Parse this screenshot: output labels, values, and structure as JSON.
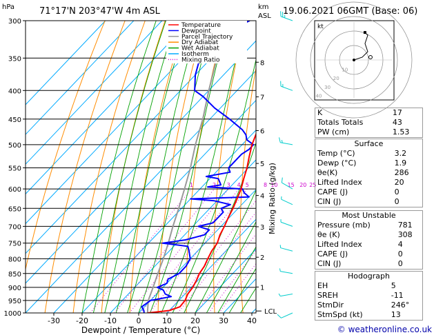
{
  "header": {
    "location": "71°17'N  203°47'W  4m  ASL",
    "datetime": "19.06.2021  06GMT  (Base: 06)",
    "hpa_label": "hPa",
    "km_label": "km",
    "asl_label": "ASL",
    "mixing_label": "Mixing Ratio (g/kg)",
    "lcl_label": "LCL",
    "credit": "© weatheronline.co.uk",
    "hodo_unit": "kt"
  },
  "legend": [
    {
      "label": "Temperature",
      "color": "#ff0000",
      "style": "solid"
    },
    {
      "label": "Dewpoint",
      "color": "#0000ff",
      "style": "solid"
    },
    {
      "label": "Parcel Trajectory",
      "color": "#999999",
      "style": "solid"
    },
    {
      "label": "Dry Adiabat",
      "color": "#ff8c00",
      "style": "solid"
    },
    {
      "label": "Wet Adiabat",
      "color": "#00a000",
      "style": "solid"
    },
    {
      "label": "Isotherm",
      "color": "#00aaff",
      "style": "solid"
    },
    {
      "label": "Mixing Ratio",
      "color": "#cc00cc",
      "style": "dotted"
    }
  ],
  "chart_data": {
    "type": "line",
    "xlabel": "Dewpoint / Temperature (°C)",
    "x_ticks": [
      "-30",
      "-20",
      "-10",
      "0",
      "10",
      "20",
      "30",
      "40"
    ],
    "p_ticks": [
      "300",
      "350",
      "400",
      "450",
      "500",
      "550",
      "600",
      "650",
      "700",
      "750",
      "800",
      "850",
      "900",
      "950",
      "1000"
    ],
    "km_ticks": [
      "1",
      "2",
      "3",
      "4",
      "5",
      "6",
      "7",
      "8"
    ],
    "mixing_ratio_labels": [
      "1",
      "2",
      "3",
      "4",
      "5",
      "8",
      "10",
      "15",
      "20",
      "25"
    ],
    "series": [
      {
        "name": "Temperature",
        "color": "#ff0000",
        "points": [
          [
            1000,
            3.2
          ],
          [
            990,
            10
          ],
          [
            975,
            12.5
          ],
          [
            950,
            12.2
          ],
          [
            925,
            11
          ],
          [
            900,
            10.5
          ],
          [
            875,
            9.5
          ],
          [
            850,
            8.2
          ],
          [
            825,
            7.5
          ],
          [
            800,
            6.2
          ],
          [
            775,
            5
          ],
          [
            750,
            4.3
          ],
          [
            725,
            2.5
          ],
          [
            700,
            1.2
          ],
          [
            675,
            -0.4
          ],
          [
            650,
            -1.8
          ],
          [
            625,
            -3.6
          ],
          [
            600,
            -5.5
          ],
          [
            575,
            -8
          ],
          [
            550,
            -10.5
          ],
          [
            525,
            -13.5
          ],
          [
            500,
            -16.5
          ],
          [
            475,
            -19
          ],
          [
            450,
            -21
          ],
          [
            425,
            -23.5
          ],
          [
            400,
            -27
          ],
          [
            375,
            -31
          ],
          [
            350,
            -35.5
          ],
          [
            325,
            -39.5
          ],
          [
            300,
            -44
          ]
        ]
      },
      {
        "name": "Dewpoint",
        "color": "#0000ff",
        "points": [
          [
            1000,
            1.9
          ],
          [
            990,
            1
          ],
          [
            975,
            -1
          ],
          [
            950,
            0
          ],
          [
            935,
            6
          ],
          [
            925,
            3
          ],
          [
            910,
            1
          ],
          [
            900,
            -2
          ],
          [
            885,
            0
          ],
          [
            870,
            -1
          ],
          [
            850,
            1
          ],
          [
            825,
            1
          ],
          [
            800,
            0
          ],
          [
            775,
            -3
          ],
          [
            760,
            -5
          ],
          [
            750,
            -15
          ],
          [
            740,
            -8
          ],
          [
            725,
            -3
          ],
          [
            710,
            -3
          ],
          [
            700,
            -8
          ],
          [
            690,
            -4
          ],
          [
            675,
            -4
          ],
          [
            660,
            -4
          ],
          [
            650,
            -6
          ],
          [
            640,
            -4
          ],
          [
            630,
            -11
          ],
          [
            625,
            -20
          ],
          [
            620,
            0
          ],
          [
            610,
            -3
          ],
          [
            600,
            -5
          ],
          [
            595,
            -18
          ],
          [
            590,
            -14
          ],
          [
            585,
            -15
          ],
          [
            575,
            -17
          ],
          [
            570,
            -22
          ],
          [
            560,
            -15
          ],
          [
            550,
            -17
          ],
          [
            540,
            -17
          ],
          [
            530,
            -17
          ],
          [
            520,
            -17
          ],
          [
            510,
            -16
          ],
          [
            500,
            -16
          ],
          [
            490,
            -20
          ],
          [
            480,
            -22
          ],
          [
            470,
            -25
          ],
          [
            450,
            -33
          ],
          [
            430,
            -42
          ],
          [
            410,
            -50
          ],
          [
            400,
            -55
          ],
          [
            375,
            -60
          ],
          [
            350,
            -64
          ],
          [
            325,
            -62
          ],
          [
            310,
            -62
          ],
          [
            300,
            -59
          ]
        ]
      },
      {
        "name": "Parcel Trajectory",
        "color": "#999999",
        "points": [
          [
            1000,
            3.2
          ],
          [
            992,
            2.5
          ],
          [
            950,
            -0.8
          ],
          [
            900,
            -3.5
          ],
          [
            850,
            -6.5
          ],
          [
            800,
            -9.5
          ],
          [
            750,
            -13
          ],
          [
            700,
            -17
          ],
          [
            650,
            -21
          ],
          [
            600,
            -25.5
          ],
          [
            550,
            -30.5
          ],
          [
            500,
            -36.5
          ],
          [
            450,
            -42.5
          ],
          [
            400,
            -50
          ],
          [
            350,
            -58
          ],
          [
            300,
            -67
          ]
        ]
      }
    ]
  },
  "wind_barbs": [
    {
      "p": 1000,
      "dir": 246,
      "speed": 10
    },
    {
      "p": 925,
      "dir": 260,
      "speed": 5
    },
    {
      "p": 850,
      "dir": 280,
      "speed": 5
    },
    {
      "p": 775,
      "dir": 285,
      "speed": 5
    },
    {
      "p": 700,
      "dir": 290,
      "speed": 5
    },
    {
      "p": 640,
      "dir": 295,
      "speed": 5
    },
    {
      "p": 600,
      "dir": 300,
      "speed": 10
    },
    {
      "p": 500,
      "dir": 280,
      "speed": 15
    },
    {
      "p": 400,
      "dir": 290,
      "speed": 15
    },
    {
      "p": 300,
      "dir": 290,
      "speed": 25
    }
  ],
  "hodograph": {
    "unit": "kt",
    "ring_labels": [
      "10",
      "20",
      "30",
      "40"
    ],
    "trace": [
      [
        0,
        0
      ],
      [
        3,
        1
      ],
      [
        5,
        3
      ],
      [
        4,
        6
      ],
      [
        5,
        9
      ],
      [
        4,
        10
      ]
    ],
    "storm": [
      6,
      2
    ]
  },
  "indices": [
    {
      "label": "K",
      "value": "17"
    },
    {
      "label": "Totals Totals",
      "value": "43"
    },
    {
      "label": "PW (cm)",
      "value": "1.53"
    }
  ],
  "surface": {
    "title": "Surface",
    "rows": [
      {
        "label": "Temp (°C)",
        "value": "3.2"
      },
      {
        "label": "Dewp (°C)",
        "value": "1.9"
      },
      {
        "label": "θe(K)",
        "value": "286"
      },
      {
        "label": "Lifted Index",
        "value": "20"
      },
      {
        "label": "CAPE (J)",
        "value": "0"
      },
      {
        "label": "CIN (J)",
        "value": "0"
      }
    ]
  },
  "most_unstable": {
    "title": "Most Unstable",
    "rows": [
      {
        "label": "Pressure (mb)",
        "value": "781"
      },
      {
        "label": "θe (K)",
        "value": "308"
      },
      {
        "label": "Lifted Index",
        "value": "4"
      },
      {
        "label": "CAPE (J)",
        "value": "0"
      },
      {
        "label": "CIN (J)",
        "value": "0"
      }
    ]
  },
  "hodo_table": {
    "title": "Hodograph",
    "rows": [
      {
        "label": "EH",
        "value": "5"
      },
      {
        "label": "SREH",
        "value": "-11"
      },
      {
        "label": "StmDir",
        "value": "246°"
      },
      {
        "label": "StmSpd (kt)",
        "value": "13"
      }
    ]
  }
}
